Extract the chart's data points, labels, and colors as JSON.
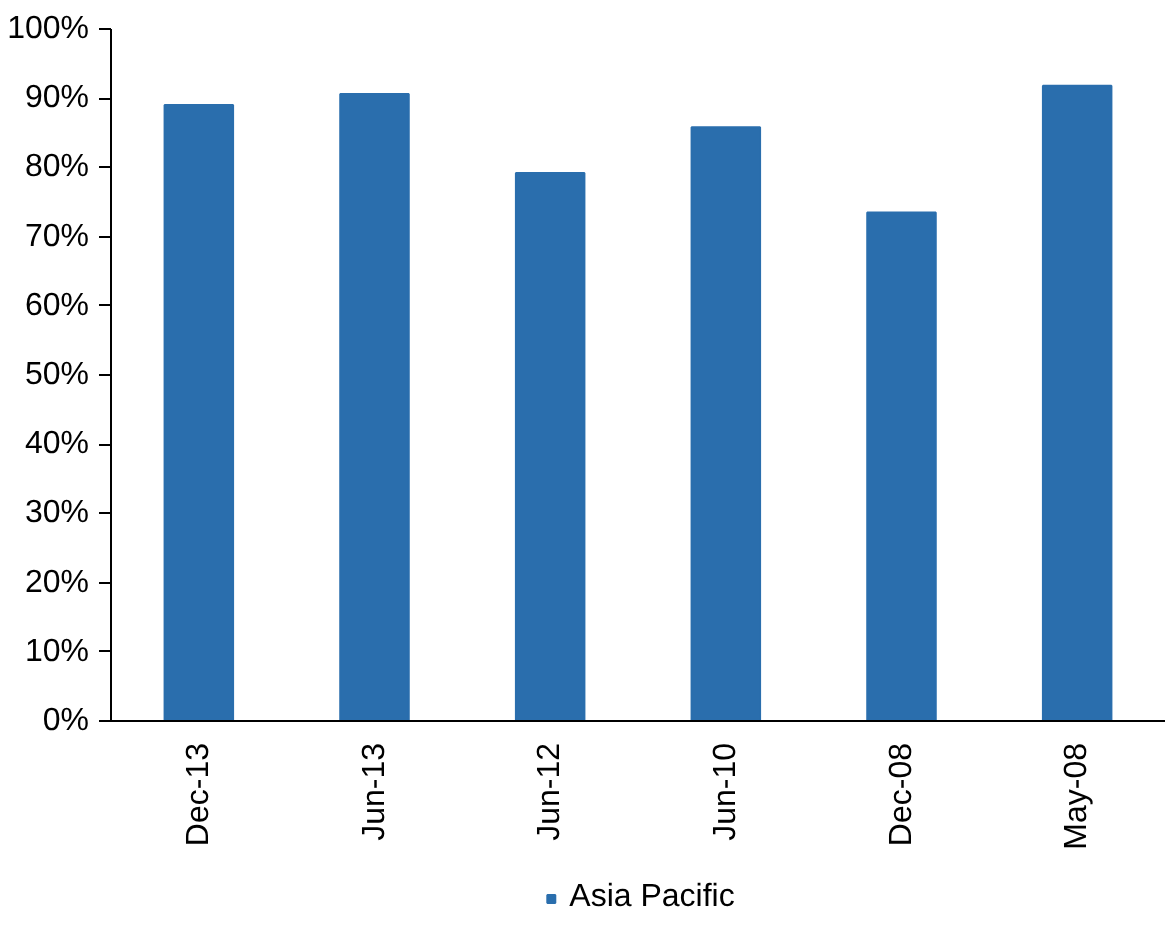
{
  "chart_data": {
    "type": "bar",
    "categories": [
      "Dec-13",
      "Jun-13",
      "Jun-12",
      "Jun-10",
      "Dec-08",
      "May-08"
    ],
    "series": [
      {
        "name": "Asia Pacific",
        "color": "#2a6ead",
        "values": [
          89.0,
          90.6,
          79.2,
          85.8,
          73.5,
          91.8
        ]
      }
    ],
    "ylim": [
      0,
      100
    ],
    "yticks": [
      {
        "value": 0,
        "label": "0%"
      },
      {
        "value": 10,
        "label": "10%"
      },
      {
        "value": 20,
        "label": "20%"
      },
      {
        "value": 30,
        "label": "30%"
      },
      {
        "value": 40,
        "label": "40%"
      },
      {
        "value": 50,
        "label": "50%"
      },
      {
        "value": 60,
        "label": "60%"
      },
      {
        "value": 70,
        "label": "70%"
      },
      {
        "value": 80,
        "label": "80%"
      },
      {
        "value": 90,
        "label": "90%"
      },
      {
        "value": 100,
        "label": "100%"
      }
    ],
    "grid": false,
    "legend": "bottom"
  }
}
